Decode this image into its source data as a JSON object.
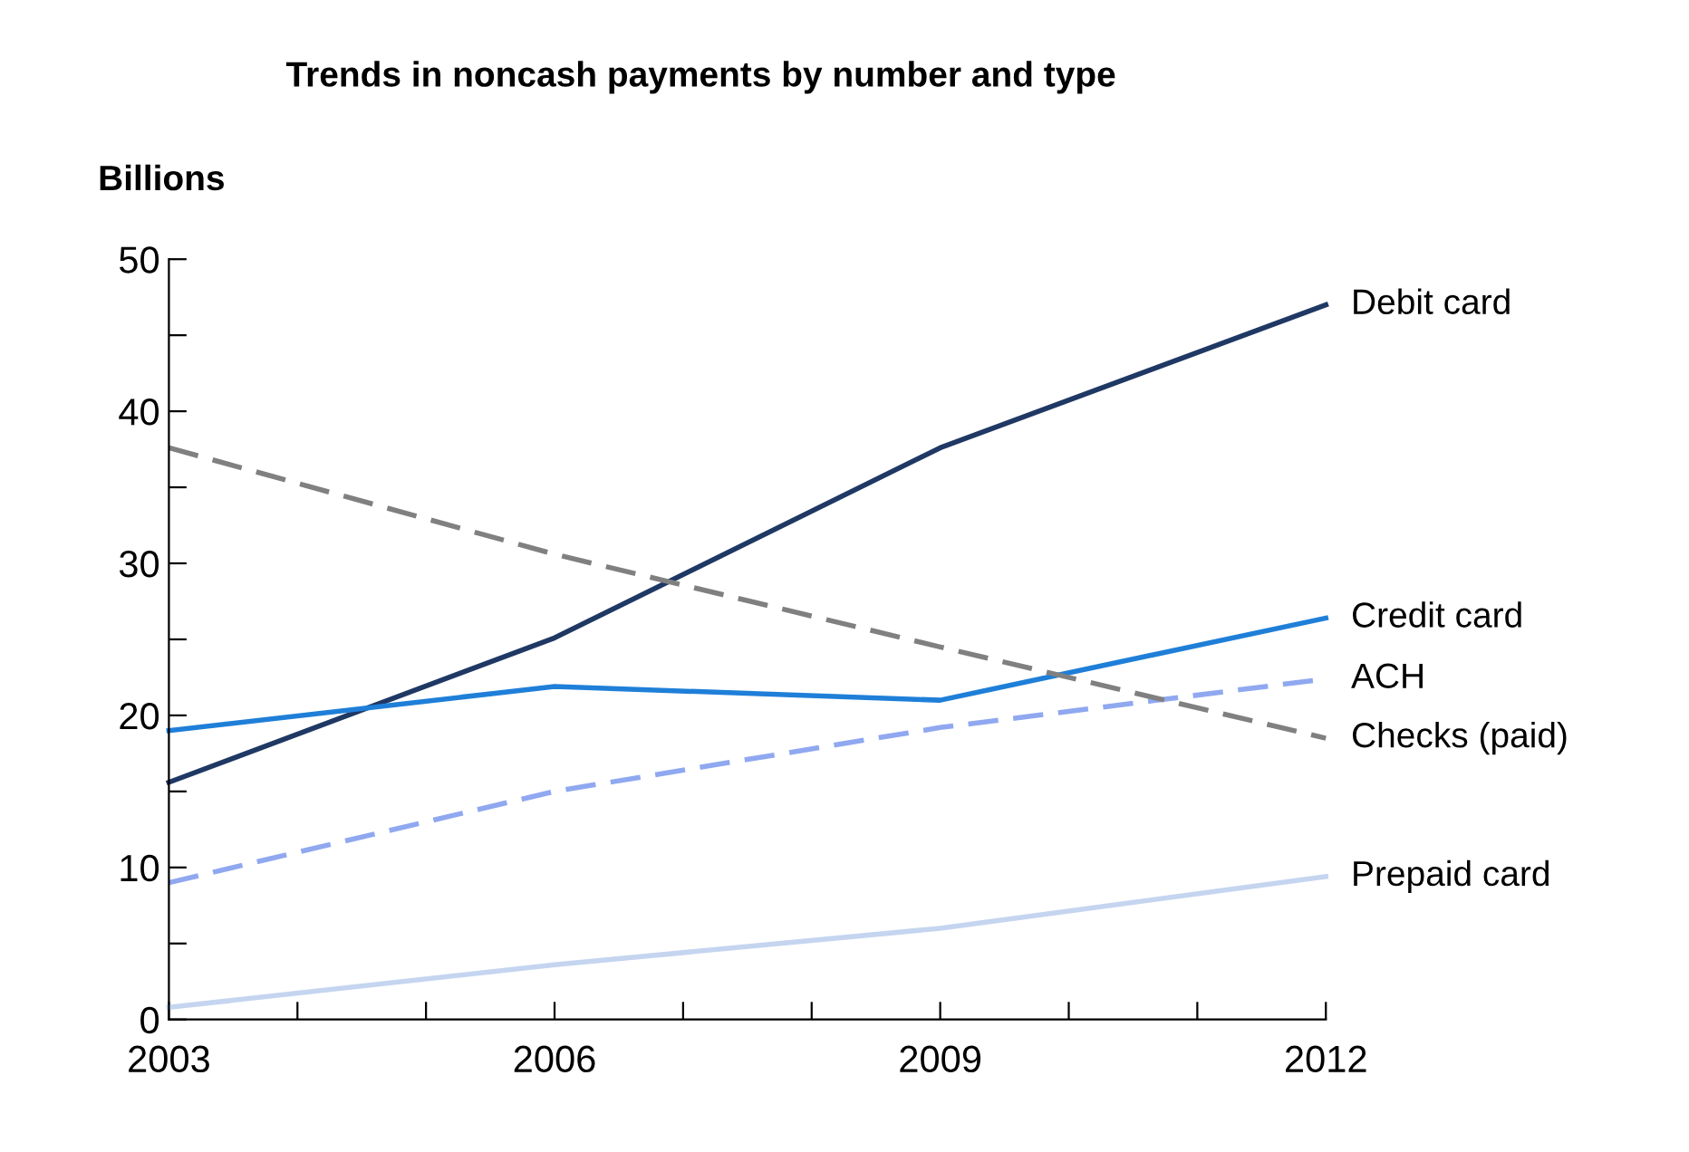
{
  "chart_data": {
    "type": "line",
    "title": "Trends in noncash payments by number and type",
    "ylabel": "Billions",
    "x": [
      2003,
      2006,
      2009,
      2012
    ],
    "xlim": [
      2003,
      2012
    ],
    "xticks": [
      2003,
      {
        "value": 2004,
        "label": null
      },
      {
        "value": 2005,
        "label": null
      },
      2006,
      {
        "value": 2007,
        "label": null
      },
      {
        "value": 2008,
        "label": null
      },
      2009,
      {
        "value": 2010,
        "label": null
      },
      {
        "value": 2011,
        "label": null
      },
      2012
    ],
    "ylim": [
      0,
      50
    ],
    "yticks": [
      0,
      {
        "value": 5,
        "label": null
      },
      10,
      {
        "value": 15,
        "label": null
      },
      20,
      {
        "value": 25,
        "label": null
      },
      30,
      {
        "value": 35,
        "label": null
      },
      40,
      {
        "value": 45,
        "label": null
      },
      50
    ],
    "grid": false,
    "legend": false,
    "series": [
      {
        "name": "Debit card",
        "color": "#1f3864",
        "values": [
          15.6,
          25.1,
          37.6,
          47.0
        ]
      },
      {
        "name": "Credit card",
        "color": "#1f7fd8",
        "values": [
          19.0,
          21.9,
          21.0,
          26.4
        ]
      },
      {
        "name": "ACH",
        "color": "#8fa8f0",
        "line_style": "dashed",
        "values": [
          9.0,
          15.0,
          19.2,
          22.4
        ]
      },
      {
        "name": "Checks (paid)",
        "color": "#808080",
        "line_style": "dashed",
        "values": [
          37.6,
          30.6,
          24.5,
          18.5
        ]
      },
      {
        "name": "Prepaid card",
        "color": "#c5d5f0",
        "values": [
          0.8,
          3.6,
          6.0,
          9.4
        ]
      }
    ]
  }
}
